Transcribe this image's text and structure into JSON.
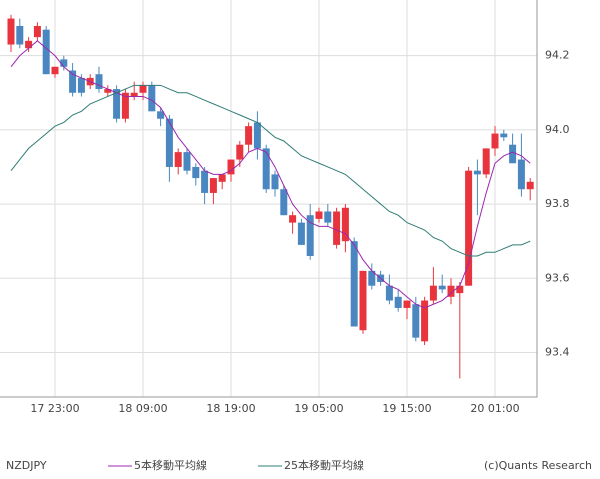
{
  "chart_data": {
    "type": "candlestick",
    "symbol": "NZDJPY",
    "credit": "(c)Quants Research",
    "categories": [
      null,
      null,
      null,
      null,
      null,
      "17 23:00",
      null,
      null,
      null,
      null,
      null,
      null,
      null,
      null,
      null,
      "18 09:00",
      null,
      null,
      null,
      null,
      null,
      null,
      null,
      null,
      null,
      "18 19:00",
      null,
      null,
      null,
      null,
      null,
      null,
      null,
      null,
      null,
      "19 05:00",
      null,
      null,
      null,
      null,
      null,
      null,
      null,
      null,
      null,
      "19 15:00",
      null,
      null,
      null,
      null,
      null,
      null,
      null,
      null,
      null,
      "20 01:00",
      null,
      null,
      null,
      null
    ],
    "open": [
      94.23,
      94.28,
      94.22,
      94.25,
      94.27,
      94.15,
      94.19,
      94.16,
      94.14,
      94.12,
      94.15,
      94.1,
      94.11,
      94.03,
      94.09,
      94.1,
      94.12,
      94.05,
      94.03,
      93.9,
      93.94,
      93.9,
      93.89,
      93.83,
      93.86,
      93.88,
      93.92,
      93.96,
      94.02,
      93.95,
      93.88,
      93.84,
      93.75,
      93.75,
      93.77,
      93.76,
      93.78,
      93.69,
      93.7,
      93.7,
      93.46,
      93.62,
      93.61,
      93.58,
      93.55,
      93.52,
      93.53,
      93.43,
      93.54,
      93.58,
      93.55,
      93.56,
      93.58,
      93.89,
      93.88,
      93.95,
      93.99,
      93.96,
      93.92,
      93.84
    ],
    "high": [
      94.31,
      94.3,
      94.25,
      94.29,
      94.28,
      94.17,
      94.2,
      94.18,
      94.15,
      94.15,
      94.17,
      94.12,
      94.12,
      94.11,
      94.13,
      94.13,
      94.13,
      94.06,
      94.04,
      93.95,
      93.95,
      93.91,
      93.9,
      93.87,
      93.88,
      93.92,
      93.97,
      94.02,
      94.05,
      93.96,
      93.89,
      93.85,
      93.78,
      93.76,
      93.8,
      93.79,
      93.8,
      93.79,
      93.8,
      93.71,
      93.62,
      93.64,
      93.62,
      93.61,
      93.57,
      93.54,
      93.55,
      93.55,
      93.63,
      93.61,
      93.6,
      93.59,
      93.9,
      93.92,
      93.95,
      94.01,
      94.0,
      93.99,
      93.99,
      93.87
    ],
    "low": [
      94.21,
      94.22,
      94.21,
      94.24,
      94.15,
      94.14,
      94.16,
      94.09,
      94.09,
      94.11,
      94.1,
      94.09,
      94.02,
      94.02,
      94.08,
      94.08,
      94.05,
      94.01,
      93.86,
      93.88,
      93.88,
      93.85,
      93.8,
      93.8,
      93.84,
      93.86,
      93.9,
      93.94,
      93.92,
      93.83,
      93.82,
      93.77,
      93.72,
      93.69,
      93.65,
      93.75,
      93.74,
      93.68,
      93.67,
      93.47,
      93.45,
      93.57,
      93.58,
      93.53,
      93.51,
      93.49,
      93.43,
      93.42,
      93.53,
      93.56,
      93.53,
      93.33,
      93.58,
      93.77,
      93.87,
      93.93,
      93.97,
      93.91,
      93.82,
      93.81
    ],
    "close": [
      94.3,
      94.23,
      94.24,
      94.28,
      94.15,
      94.17,
      94.17,
      94.1,
      94.1,
      94.14,
      94.11,
      94.11,
      94.03,
      94.1,
      94.1,
      94.12,
      94.05,
      94.03,
      93.9,
      93.94,
      93.89,
      93.87,
      93.83,
      93.87,
      93.88,
      93.92,
      93.96,
      94.01,
      93.95,
      93.84,
      93.84,
      93.77,
      93.77,
      93.69,
      93.66,
      93.78,
      93.75,
      93.78,
      93.79,
      93.47,
      93.62,
      93.58,
      93.59,
      93.54,
      93.52,
      93.54,
      93.44,
      93.54,
      93.58,
      93.57,
      93.58,
      93.58,
      93.89,
      93.88,
      93.95,
      93.99,
      93.98,
      93.91,
      93.84,
      93.86
    ],
    "up_color": "#e8353d",
    "down_color": "#4a87c0",
    "series": [
      {
        "name": "5本移動平均線",
        "color": "#9c27b0",
        "values": [
          94.17,
          94.2,
          94.22,
          94.24,
          94.22,
          94.2,
          94.17,
          94.15,
          94.14,
          94.13,
          94.12,
          94.11,
          94.1,
          94.09,
          94.09,
          94.09,
          94.08,
          94.06,
          94.02,
          93.98,
          93.95,
          93.92,
          93.89,
          93.88,
          93.88,
          93.89,
          93.91,
          93.94,
          93.95,
          93.94,
          93.9,
          93.85,
          93.8,
          93.77,
          93.75,
          93.74,
          93.74,
          93.73,
          93.72,
          93.69,
          93.65,
          93.62,
          93.6,
          93.58,
          93.57,
          93.55,
          93.53,
          93.52,
          93.53,
          93.54,
          93.56,
          93.58,
          93.64,
          93.74,
          93.83,
          93.91,
          93.93,
          93.94,
          93.93,
          93.91
        ]
      },
      {
        "name": "25本移動平均線",
        "color": "#2e7d74",
        "values": [
          93.89,
          93.92,
          93.95,
          93.97,
          93.99,
          94.01,
          94.02,
          94.04,
          94.05,
          94.07,
          94.08,
          94.09,
          94.1,
          94.11,
          94.12,
          94.12,
          94.12,
          94.12,
          94.11,
          94.1,
          94.1,
          94.09,
          94.08,
          94.07,
          94.06,
          94.05,
          94.04,
          94.03,
          94.02,
          94.0,
          93.98,
          93.97,
          93.95,
          93.93,
          93.92,
          93.91,
          93.9,
          93.89,
          93.88,
          93.86,
          93.84,
          93.82,
          93.8,
          93.78,
          93.77,
          93.75,
          93.74,
          93.73,
          93.71,
          93.7,
          93.68,
          93.67,
          93.66,
          93.66,
          93.67,
          93.67,
          93.68,
          93.69,
          93.69,
          93.7
        ]
      }
    ],
    "ylim": [
      93.28,
      94.35
    ],
    "yticks": [
      93.4,
      93.6,
      93.8,
      {
        "value": 94,
        "label": "94.0"
      },
      94.2
    ],
    "grid": true
  }
}
